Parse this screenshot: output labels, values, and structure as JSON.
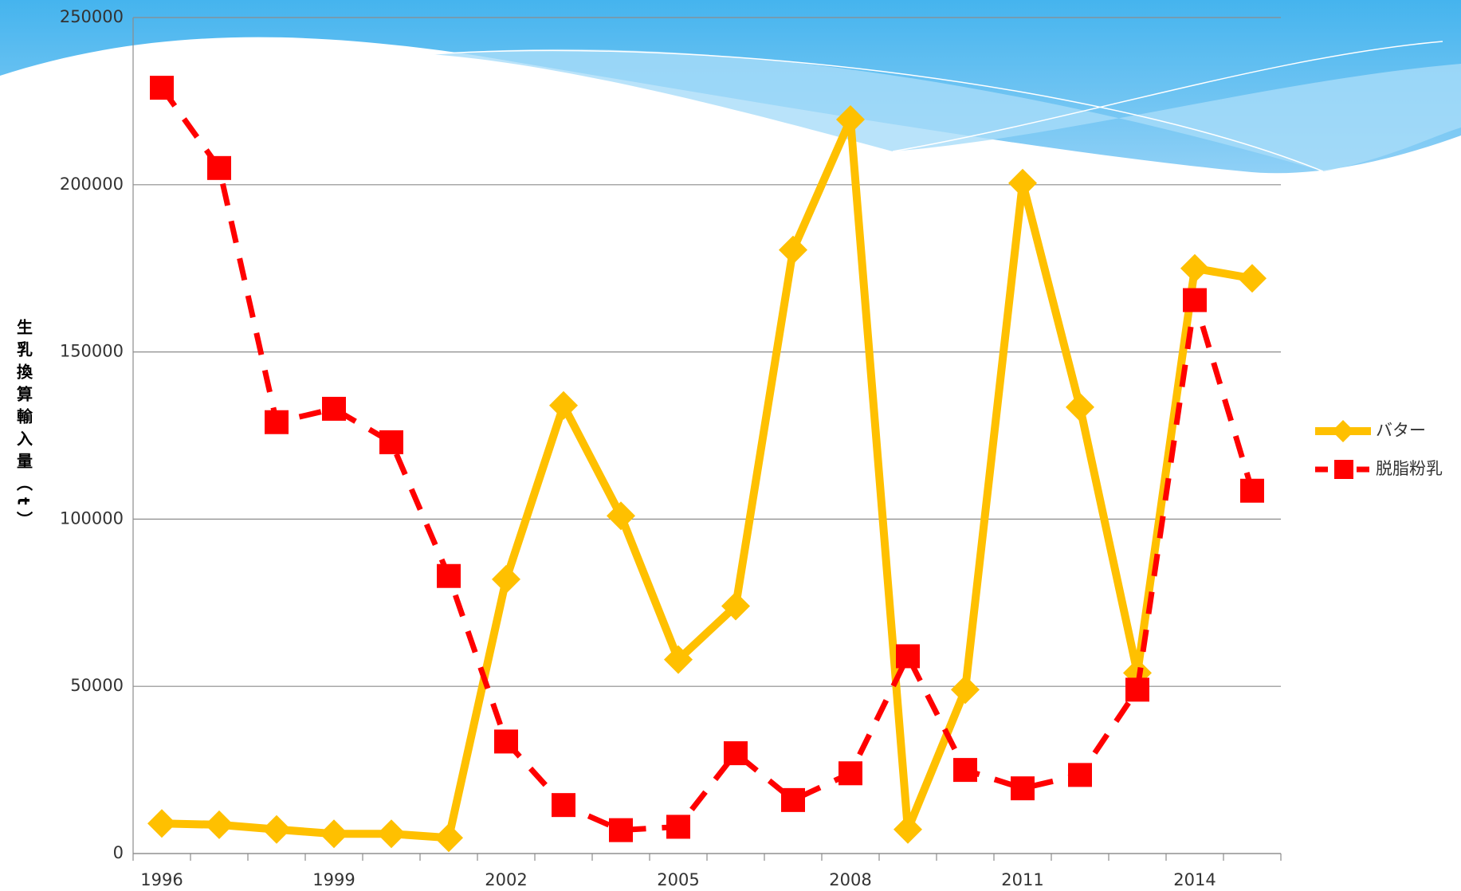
{
  "chart_data": {
    "type": "line",
    "y_label": "生乳換算輸入量（t）",
    "categories": [
      "1996",
      null,
      null,
      "1999",
      null,
      null,
      "2002",
      null,
      null,
      "2005",
      null,
      null,
      "2008",
      null,
      null,
      "2011",
      null,
      null,
      "2014",
      null
    ],
    "series": [
      {
        "name": "バター",
        "color": "#FFC000",
        "line_style": "solid",
        "marker": "diamond",
        "values": [
          9000,
          8600,
          7200,
          5900,
          5900,
          4700,
          82000,
          134000,
          101000,
          58000,
          74000,
          180500,
          219500,
          7200,
          49000,
          200500,
          133500,
          54000,
          175000,
          172000
        ]
      },
      {
        "name": "脱脂粉乳",
        "color": "#FF0000",
        "line_style": "dashed",
        "marker": "square",
        "values": [
          229000,
          205000,
          129000,
          133000,
          123000,
          83000,
          33500,
          14500,
          7000,
          8000,
          30000,
          16000,
          24000,
          59000,
          25000,
          19500,
          23500,
          49000,
          165500,
          108500
        ]
      }
    ],
    "ylim": [
      0,
      250000
    ],
    "yticks": [
      0,
      50000,
      100000,
      150000,
      200000,
      250000
    ],
    "grid": true,
    "legend": "right"
  }
}
